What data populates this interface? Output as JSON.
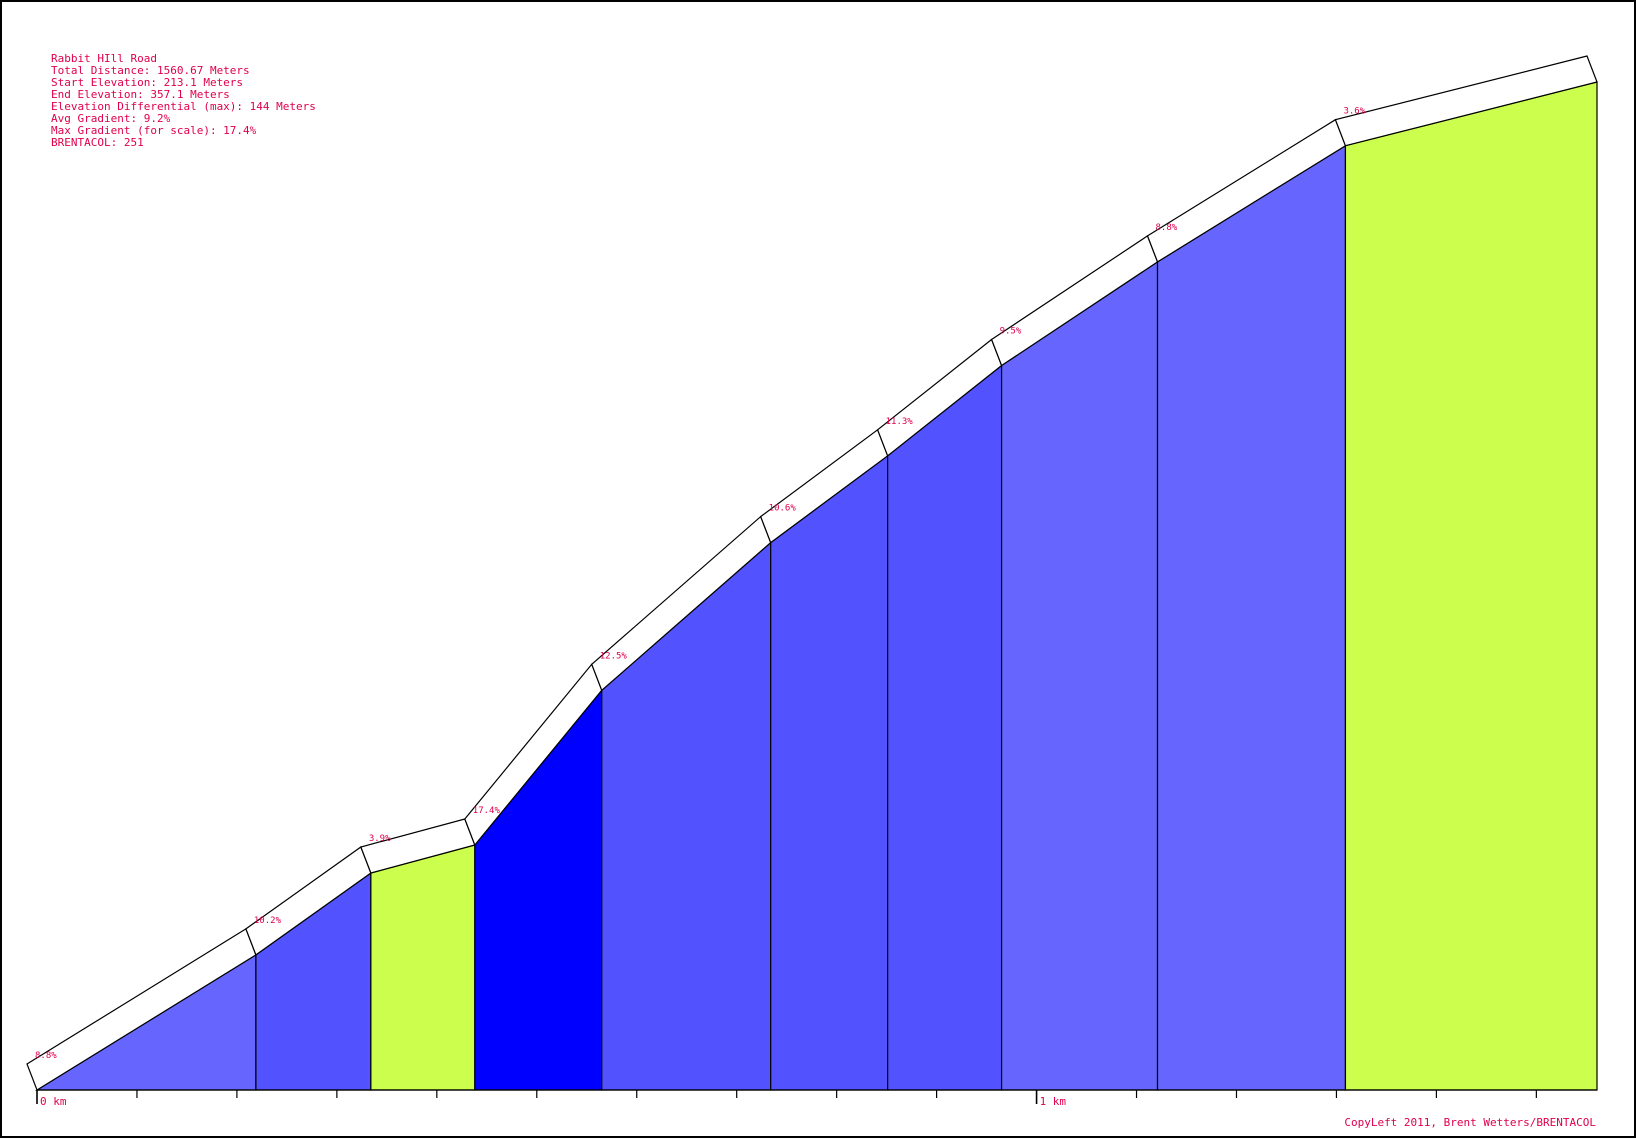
{
  "colors": {
    "text": "#e0004a",
    "outline": "#000000",
    "road": "#ffffff",
    "grade_lt_6": "#ccff4d",
    "grade_8_10": "#6666ff",
    "grade_10_14": "#5252ff",
    "grade_gt_14": "#0000ff"
  },
  "info": {
    "route_name": "Rabbit HIll Road",
    "total_distance": "Total Distance: 1560.67 Meters",
    "start_elevation": "Start Elevation: 213.1 Meters",
    "end_elevation": "End Elevation: 357.1 Meters",
    "elevation_differential": "Elevation Differential (max): 144 Meters",
    "avg_gradient": "Avg Gradient: 9.2%",
    "max_gradient": "Max Gradient (for scale): 17.4%",
    "brentacol": "BRENTACOL: 251"
  },
  "credit": "CopyLeft 2011, Brent Wetters/BRENTACOL",
  "chart_data": {
    "type": "area",
    "title": "Rabbit HIll Road",
    "x_unit": "km",
    "y_unit": "m",
    "xlim": [
      0,
      1.56067
    ],
    "ylim": [
      213.1,
      357.1
    ],
    "tick_labels": [
      "0 km",
      "1 km"
    ],
    "minor_tick_interval_km": 0.1,
    "segments": [
      {
        "start_km": 0.0,
        "end_km": 0.219,
        "start_elev": 213.1,
        "end_elev": 232.4,
        "grade_label": "8.8%"
      },
      {
        "start_km": 0.219,
        "end_km": 0.334,
        "start_elev": 232.4,
        "end_elev": 244.1,
        "grade_label": "10.2%"
      },
      {
        "start_km": 0.334,
        "end_km": 0.438,
        "start_elev": 244.1,
        "end_elev": 248.1,
        "grade_label": "3.9%"
      },
      {
        "start_km": 0.438,
        "end_km": 0.565,
        "start_elev": 248.1,
        "end_elev": 270.2,
        "grade_label": "17.4%"
      },
      {
        "start_km": 0.565,
        "end_km": 0.734,
        "start_elev": 270.2,
        "end_elev": 291.3,
        "grade_label": "12.5%"
      },
      {
        "start_km": 0.734,
        "end_km": 0.851,
        "start_elev": 291.3,
        "end_elev": 303.7,
        "grade_label": "10.6%"
      },
      {
        "start_km": 0.851,
        "end_km": 0.965,
        "start_elev": 303.7,
        "end_elev": 316.6,
        "grade_label": "11.3%"
      },
      {
        "start_km": 0.965,
        "end_km": 1.121,
        "start_elev": 316.6,
        "end_elev": 331.4,
        "grade_label": "9.5%"
      },
      {
        "start_km": 1.121,
        "end_km": 1.309,
        "start_elev": 331.4,
        "end_elev": 348.0,
        "grade_label": "8.8%"
      },
      {
        "start_km": 1.309,
        "end_km": 1.56067,
        "start_elev": 348.0,
        "end_elev": 357.1,
        "grade_label": "3.6%"
      }
    ]
  }
}
